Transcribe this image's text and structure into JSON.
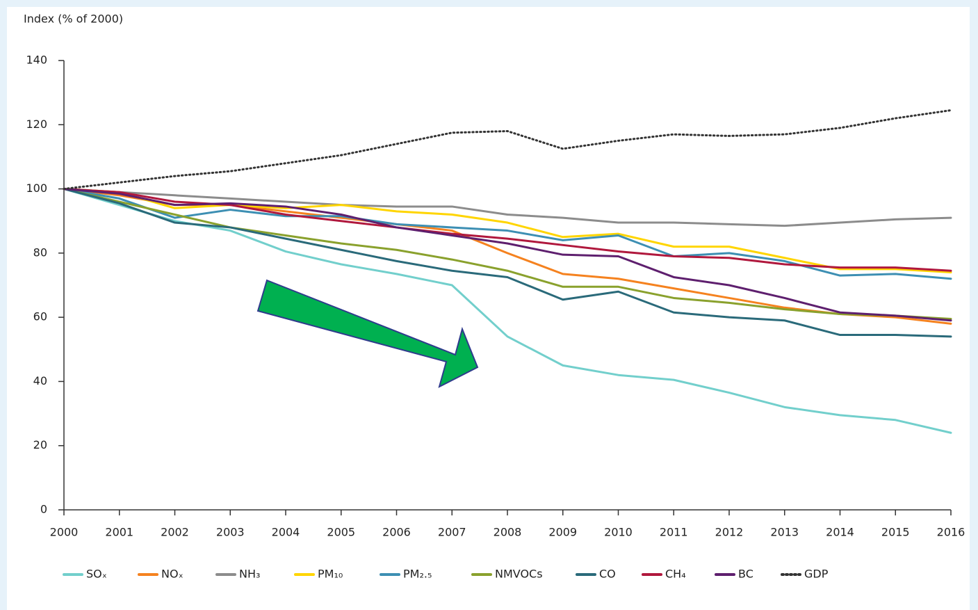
{
  "chart_data": {
    "type": "line",
    "y_label": "Index (% of 2000)",
    "x": [
      2000,
      2001,
      2002,
      2003,
      2004,
      2005,
      2006,
      2007,
      2008,
      2009,
      2010,
      2011,
      2012,
      2013,
      2014,
      2015,
      2016
    ],
    "xlim": [
      2000,
      2016
    ],
    "xticks": [
      2000,
      2001,
      2002,
      2003,
      2004,
      2005,
      2006,
      2007,
      2008,
      2009,
      2010,
      2011,
      2012,
      2013,
      2014,
      2015,
      2016
    ],
    "ylim": [
      0,
      140
    ],
    "yticks": [
      0,
      20,
      40,
      60,
      80,
      100,
      120,
      140
    ],
    "grid": false,
    "legend": "bottom",
    "series": [
      {
        "name": "SOₓ",
        "color": "#72cfcc",
        "values": [
          100,
          95,
          90,
          87,
          80.5,
          76.5,
          73.5,
          70,
          54,
          45,
          42,
          40.5,
          36.5,
          32,
          29.5,
          28,
          24
        ]
      },
      {
        "name": "NOₓ",
        "color": "#f5821f",
        "values": [
          100,
          98,
          95,
          95,
          93,
          91,
          89,
          87,
          80,
          73.5,
          72,
          69,
          66,
          63,
          61,
          60,
          58
        ]
      },
      {
        "name": "NH₃",
        "color": "#8c8c8c",
        "values": [
          100,
          99,
          98,
          97,
          96,
          95,
          94.5,
          94.5,
          92,
          91,
          89.5,
          89.5,
          89,
          88.5,
          89.5,
          90.5,
          91
        ]
      },
      {
        "name": "PM₁₀",
        "color": "#ffd500",
        "values": [
          100,
          99,
          94,
          95,
          94,
          95,
          93,
          92,
          89.5,
          85,
          86,
          82,
          82,
          78.5,
          75,
          75,
          74
        ]
      },
      {
        "name": "PM₂.₅",
        "color": "#3d8fb3",
        "values": [
          100,
          97,
          91,
          93.5,
          91.5,
          91.5,
          89,
          88,
          87,
          84,
          85.5,
          79,
          80,
          77.5,
          73,
          73.5,
          72
        ]
      },
      {
        "name": "NMVOCs",
        "color": "#8aa12d",
        "values": [
          100,
          96,
          92,
          88,
          85.5,
          83,
          81,
          78,
          74.5,
          69.5,
          69.5,
          66,
          64.5,
          62.5,
          61,
          60.5,
          59.5
        ]
      },
      {
        "name": "CO",
        "color": "#2a6a7a",
        "values": [
          100,
          95.5,
          89.5,
          88,
          84.5,
          81,
          77.5,
          74.5,
          72.5,
          65.5,
          68,
          61.5,
          60,
          59,
          54.5,
          54.5,
          54
        ]
      },
      {
        "name": "CH₄",
        "color": "#b0183d",
        "values": [
          100,
          99,
          96,
          95,
          92,
          90,
          88,
          86,
          84.5,
          82.5,
          80.5,
          79,
          78.5,
          76.5,
          75.5,
          75.5,
          74.5
        ]
      },
      {
        "name": "BC",
        "color": "#5e1f6e",
        "values": [
          100,
          98.5,
          95,
          95.5,
          94.5,
          92,
          88,
          85.5,
          83,
          79.5,
          79,
          72.5,
          70,
          66,
          61.5,
          60.5,
          59
        ]
      },
      {
        "name": "GDP",
        "color": "#333333",
        "line_style": "dotted",
        "values": [
          100,
          102,
          104,
          105.5,
          108,
          110.5,
          114,
          117.5,
          118,
          112.5,
          115,
          117,
          116.5,
          117,
          119,
          122,
          124.5
        ]
      }
    ]
  }
}
